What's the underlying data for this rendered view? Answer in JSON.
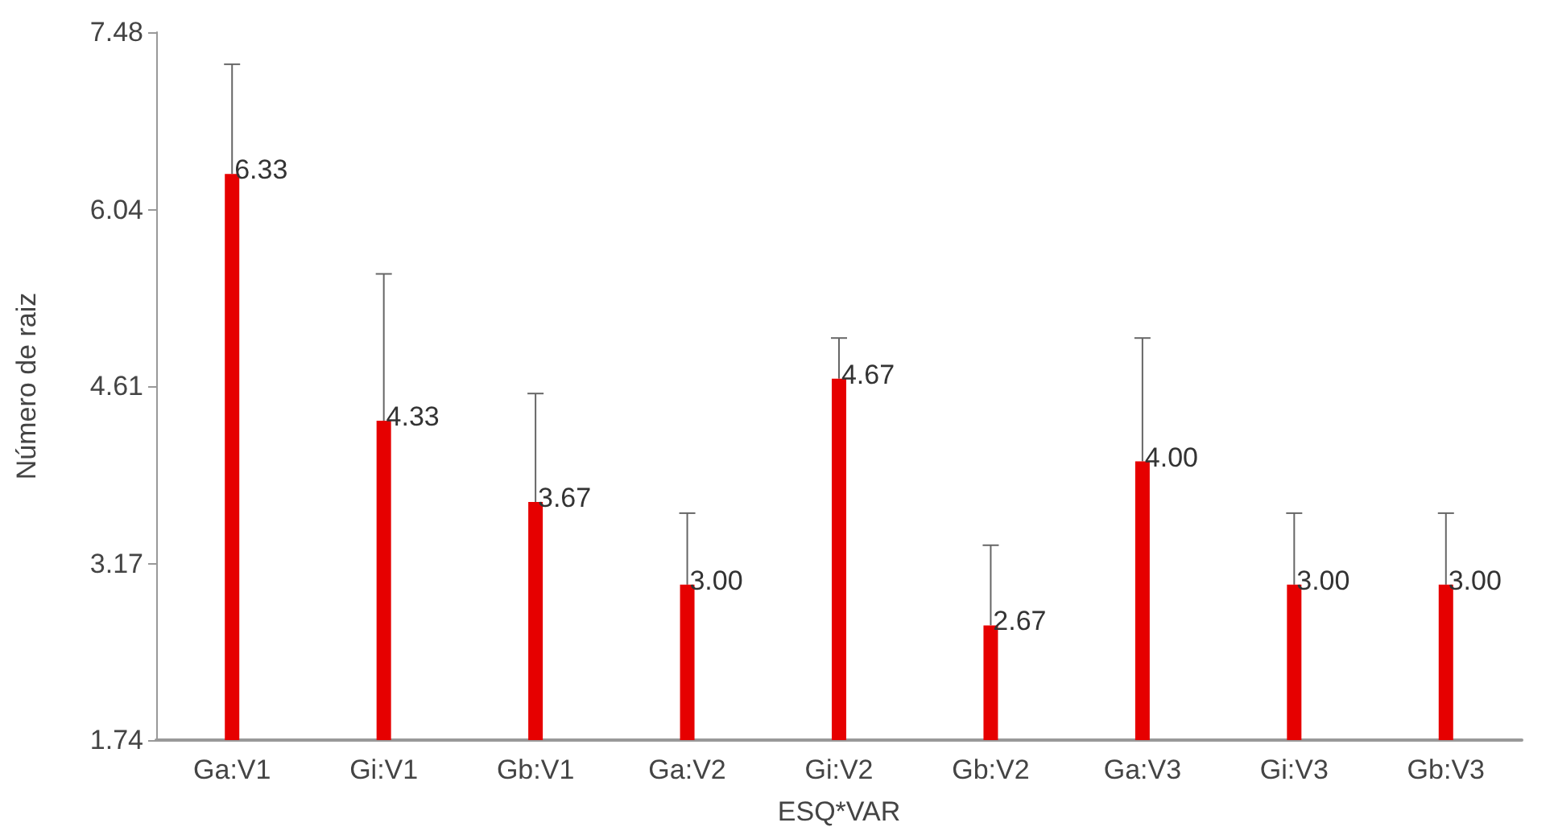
{
  "chart_data": {
    "type": "bar",
    "xlabel": "ESQ*VAR",
    "ylabel": "Número de raiz",
    "categories": [
      "Ga:V1",
      "Gi:V1",
      "Gb:V1",
      "Ga:V2",
      "Gi:V2",
      "Gb:V2",
      "Ga:V3",
      "Gi:V3",
      "Gb:V3"
    ],
    "values": [
      6.33,
      4.33,
      3.67,
      3.0,
      4.67,
      2.67,
      4.0,
      3.0,
      3.0
    ],
    "value_labels": [
      "6.33",
      "4.33",
      "3.67",
      "3.00",
      "4.67",
      "2.67",
      "4.00",
      "3.00",
      "3.00"
    ],
    "errors": [
      [
        6.33,
        7.22
      ],
      [
        4.33,
        5.52
      ],
      [
        3.67,
        4.55
      ],
      [
        3.0,
        3.58
      ],
      [
        4.67,
        5.0
      ],
      [
        2.67,
        3.32
      ],
      [
        4.0,
        5.0
      ],
      [
        3.0,
        3.58
      ],
      [
        3.0,
        3.58
      ]
    ],
    "color": "#e60000",
    "ylim": [
      1.74,
      7.48
    ],
    "yticks": [
      1.74,
      3.17,
      4.61,
      6.04,
      7.48
    ],
    "grid": false
  }
}
